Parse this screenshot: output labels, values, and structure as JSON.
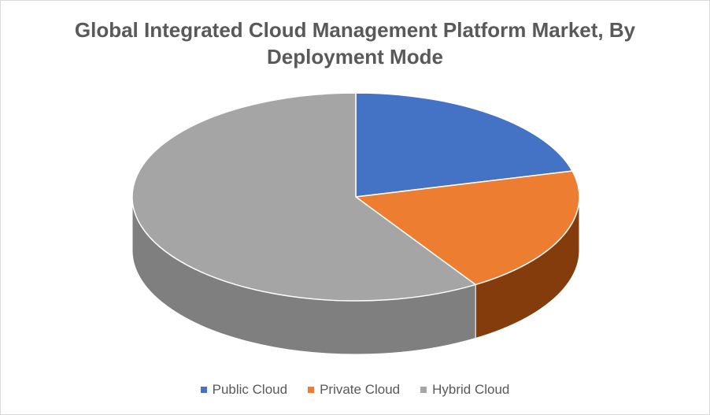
{
  "chart_data": {
    "type": "pie",
    "title_line1": "Global Integrated Cloud Management Platform Market, By",
    "title_line2": "Deployment Mode",
    "slices": [
      {
        "label": "Public Cloud",
        "value": 21,
        "color": "#4472C4",
        "side_color": "#2F5597"
      },
      {
        "label": "Private Cloud",
        "value": 20,
        "color": "#ED7D31",
        "side_color": "#843C0C"
      },
      {
        "label": "Hybrid Cloud",
        "value": 59,
        "color": "#A5A5A5",
        "side_color": "#7F7F7F"
      }
    ],
    "legend_position": "bottom",
    "style": "3d"
  }
}
